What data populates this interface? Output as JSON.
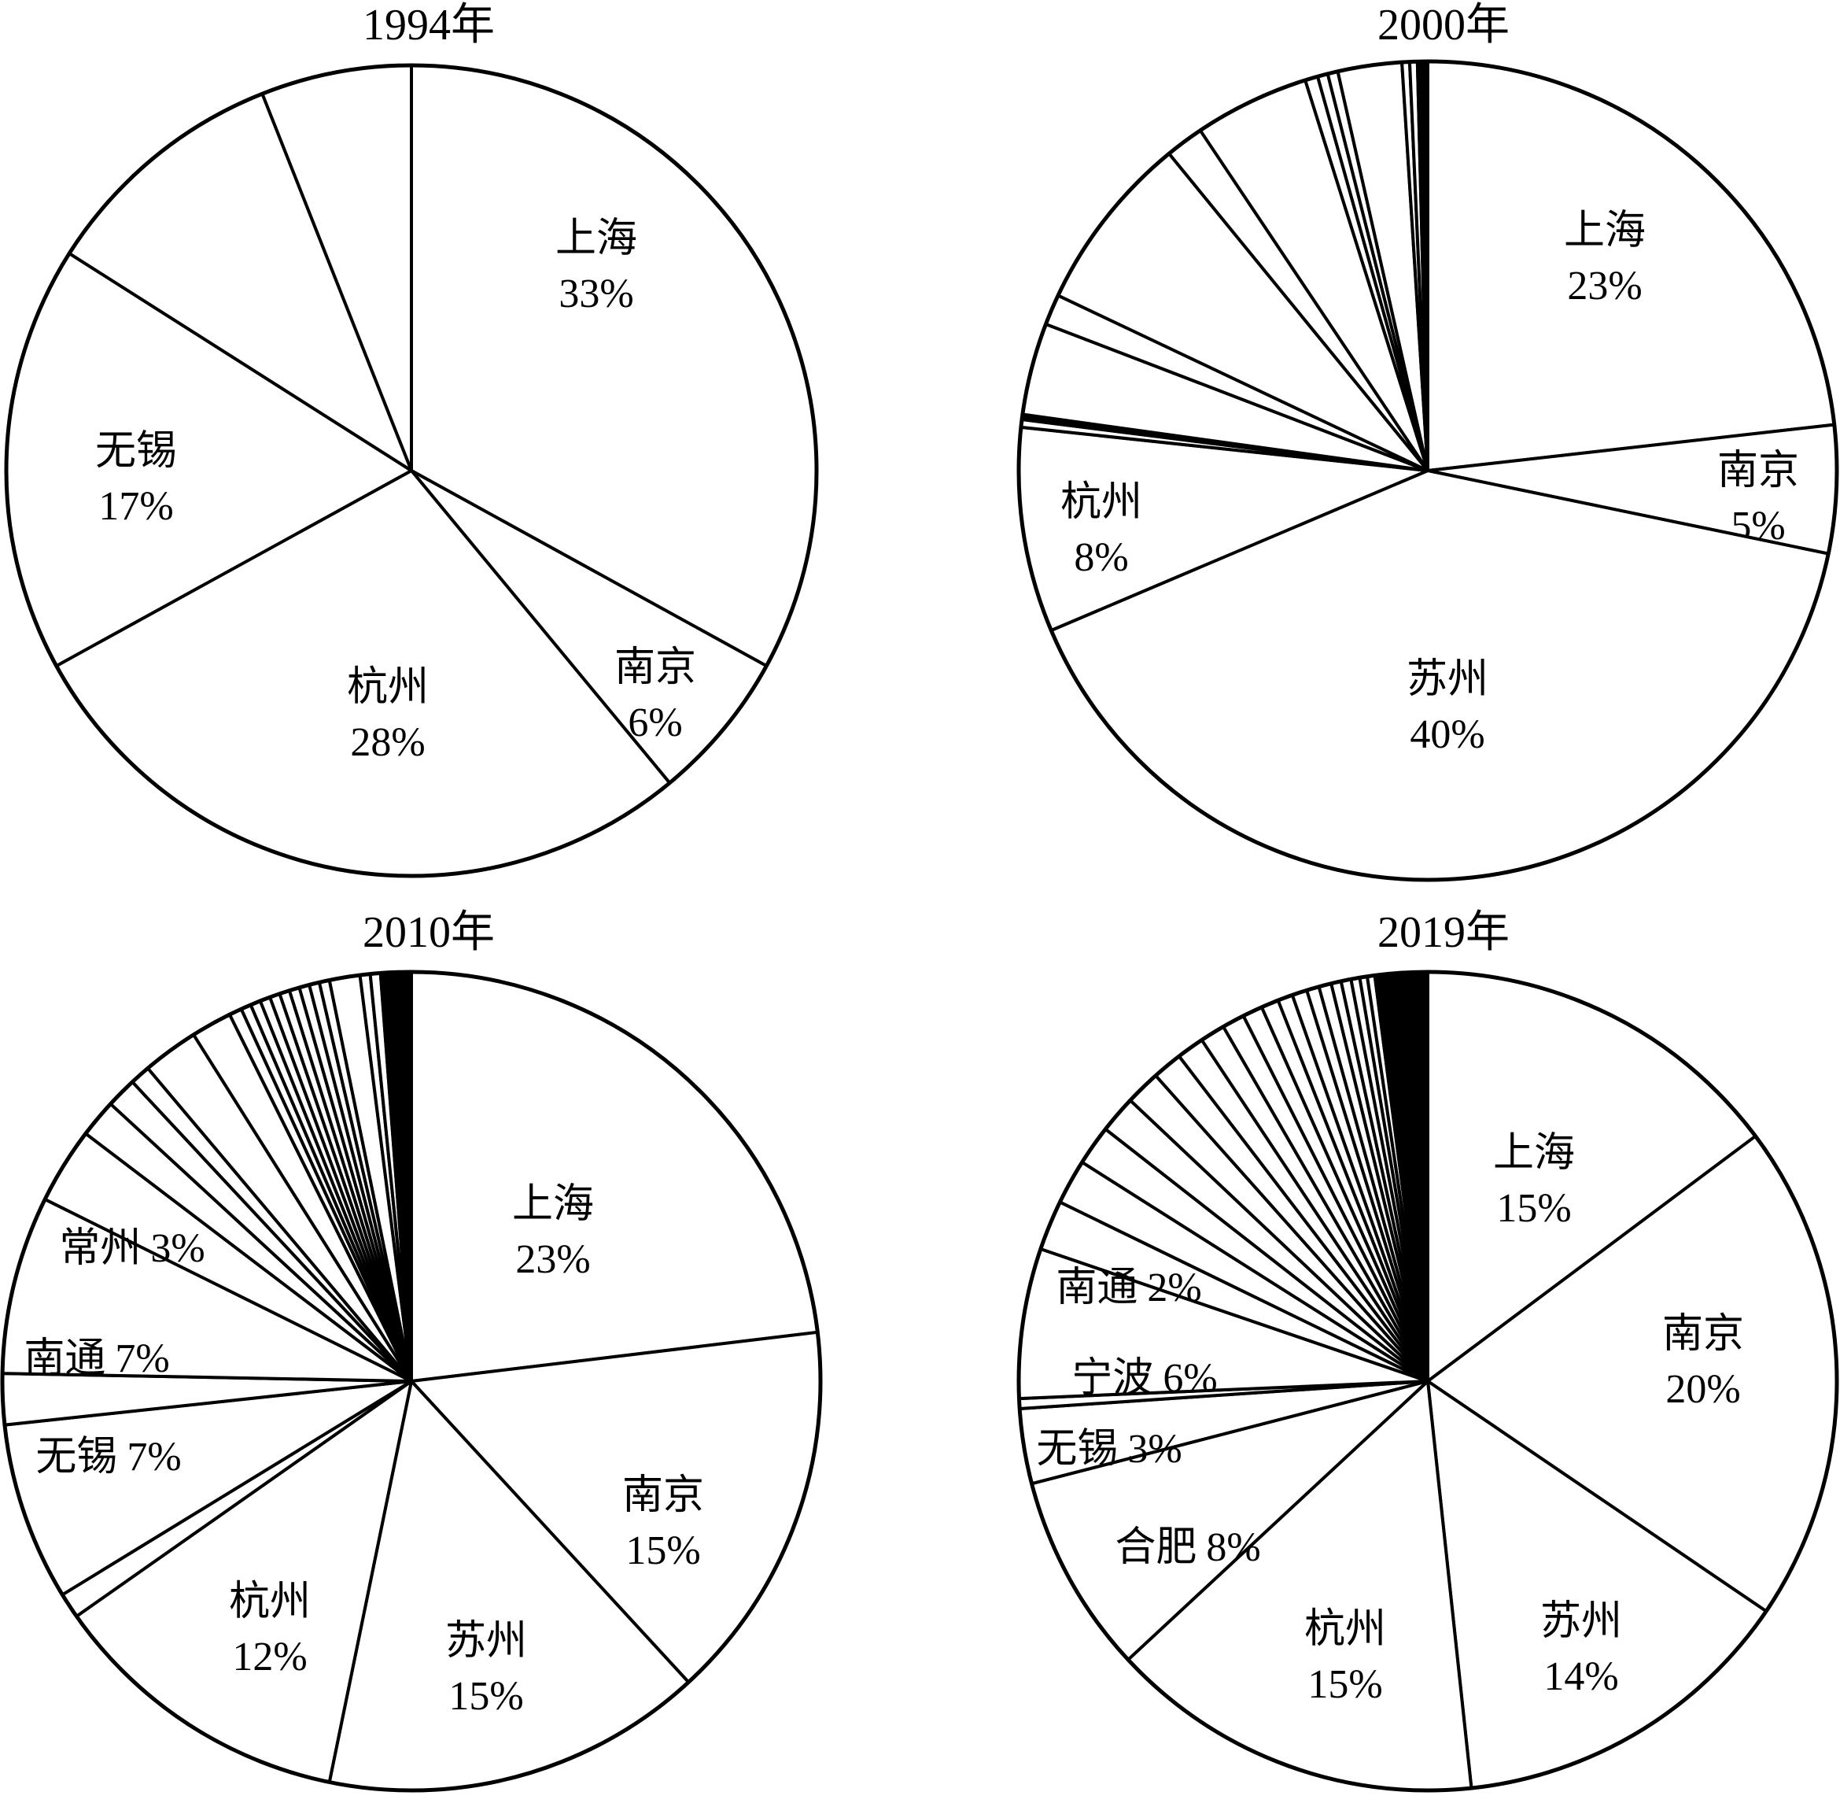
{
  "chart_data": [
    {
      "type": "pie",
      "title": "1994年",
      "slices": [
        {
          "label": "上海",
          "pct_text": "33%",
          "value": 33
        },
        {
          "label": "南京",
          "pct_text": "6%",
          "value": 6
        },
        {
          "label": "杭州",
          "pct_text": "28%",
          "value": 28
        },
        {
          "label": "无锡",
          "pct_text": "17%",
          "value": 17
        },
        {
          "label": "",
          "pct_text": "",
          "value": 10
        },
        {
          "label": "",
          "pct_text": "",
          "value": 6
        }
      ]
    },
    {
      "type": "pie",
      "title": "2000年",
      "slices": [
        {
          "label": "上海",
          "pct_text": "23%",
          "value": 23
        },
        {
          "label": "南京",
          "pct_text": "5%",
          "value": 5
        },
        {
          "label": "苏州",
          "pct_text": "40%",
          "value": 40
        },
        {
          "label": "杭州",
          "pct_text": "8%",
          "value": 8
        },
        {
          "label": "",
          "pct_text": "",
          "value": 0.3
        },
        {
          "label": "",
          "pct_text": "",
          "value": 0.2
        },
        {
          "label": "",
          "pct_text": "",
          "value": 3.6
        },
        {
          "label": "",
          "pct_text": "",
          "value": 1.2
        },
        {
          "label": "",
          "pct_text": "",
          "value": 7
        },
        {
          "label": "",
          "pct_text": "",
          "value": 1.5
        },
        {
          "label": "",
          "pct_text": "",
          "value": 4.5
        },
        {
          "label": "",
          "pct_text": "",
          "value": 0.5
        },
        {
          "label": "",
          "pct_text": "",
          "value": 0.4
        },
        {
          "label": "",
          "pct_text": "",
          "value": 0.4
        },
        {
          "label": "",
          "pct_text": "",
          "value": 2.5
        },
        {
          "label": "",
          "pct_text": "",
          "value": 0.3
        },
        {
          "label": "",
          "pct_text": "",
          "value": 0.3
        },
        {
          "label": "",
          "pct_text": "",
          "value": 0.2
        },
        {
          "label": "",
          "pct_text": "",
          "value": 0.2
        }
      ]
    },
    {
      "type": "pie",
      "title": "2010年",
      "slices": [
        {
          "label": "上海",
          "pct_text": "23%",
          "value": 23
        },
        {
          "label": "南京",
          "pct_text": "15%",
          "value": 15
        },
        {
          "label": "苏州",
          "pct_text": "15%",
          "value": 15
        },
        {
          "label": "杭州",
          "pct_text": "12%",
          "value": 12
        },
        {
          "label": "",
          "pct_text": "",
          "value": 1
        },
        {
          "label": "无锡",
          "pct_text": "7%",
          "value": 7
        },
        {
          "label": "",
          "pct_text": "",
          "value": 2
        },
        {
          "label": "南通",
          "pct_text": "7%",
          "value": 7
        },
        {
          "label": "常州",
          "pct_text": "3%",
          "value": 3
        },
        {
          "label": "",
          "pct_text": "",
          "value": 1.5
        },
        {
          "label": "",
          "pct_text": "",
          "value": 1.2
        },
        {
          "label": "",
          "pct_text": "",
          "value": 0.8
        },
        {
          "label": "",
          "pct_text": "",
          "value": 2.2
        },
        {
          "label": "",
          "pct_text": "",
          "value": 1.6
        },
        {
          "label": "",
          "pct_text": "",
          "value": 0.5
        },
        {
          "label": "",
          "pct_text": "",
          "value": 0.4
        },
        {
          "label": "",
          "pct_text": "",
          "value": 0.4
        },
        {
          "label": "",
          "pct_text": "",
          "value": 0.4
        },
        {
          "label": "",
          "pct_text": "",
          "value": 0.4
        },
        {
          "label": "",
          "pct_text": "",
          "value": 0.4
        },
        {
          "label": "",
          "pct_text": "",
          "value": 0.4
        },
        {
          "label": "",
          "pct_text": "",
          "value": 0.4
        },
        {
          "label": "",
          "pct_text": "",
          "value": 0.4
        },
        {
          "label": "",
          "pct_text": "",
          "value": 0.4
        },
        {
          "label": "",
          "pct_text": "",
          "value": 1.2
        },
        {
          "label": "",
          "pct_text": "",
          "value": 0.4
        },
        {
          "label": "",
          "pct_text": "",
          "value": 0.4
        },
        {
          "label": "",
          "pct_text": "",
          "value": 0.3
        },
        {
          "label": "",
          "pct_text": "",
          "value": 0.3
        },
        {
          "label": "",
          "pct_text": "",
          "value": 0.3
        },
        {
          "label": "",
          "pct_text": "",
          "value": 0.3
        }
      ]
    },
    {
      "type": "pie",
      "title": "2019年",
      "slices": [
        {
          "label": "上海",
          "pct_text": "15%",
          "value": 15
        },
        {
          "label": "南京",
          "pct_text": "20%",
          "value": 20
        },
        {
          "label": "苏州",
          "pct_text": "14%",
          "value": 14
        },
        {
          "label": "杭州",
          "pct_text": "15%",
          "value": 15
        },
        {
          "label": "合肥",
          "pct_text": "8%",
          "value": 8
        },
        {
          "label": "无锡",
          "pct_text": "3%",
          "value": 3
        },
        {
          "label": "",
          "pct_text": "",
          "value": 0.4
        },
        {
          "label": "宁波",
          "pct_text": "6%",
          "value": 6
        },
        {
          "label": "南通",
          "pct_text": "2%",
          "value": 2
        },
        {
          "label": "",
          "pct_text": "",
          "value": 1.8
        },
        {
          "label": "",
          "pct_text": "",
          "value": 1.6
        },
        {
          "label": "",
          "pct_text": "",
          "value": 1.5
        },
        {
          "label": "",
          "pct_text": "",
          "value": 1.4
        },
        {
          "label": "",
          "pct_text": "",
          "value": 1.2
        },
        {
          "label": "",
          "pct_text": "",
          "value": 1.1
        },
        {
          "label": "",
          "pct_text": "",
          "value": 1.0
        },
        {
          "label": "",
          "pct_text": "",
          "value": 0.9
        },
        {
          "label": "",
          "pct_text": "",
          "value": 0.8
        },
        {
          "label": "",
          "pct_text": "",
          "value": 0.7
        },
        {
          "label": "",
          "pct_text": "",
          "value": 0.6
        },
        {
          "label": "",
          "pct_text": "",
          "value": 0.6
        },
        {
          "label": "",
          "pct_text": "",
          "value": 0.5
        },
        {
          "label": "",
          "pct_text": "",
          "value": 0.5
        },
        {
          "label": "",
          "pct_text": "",
          "value": 0.4
        },
        {
          "label": "",
          "pct_text": "",
          "value": 0.4
        },
        {
          "label": "",
          "pct_text": "",
          "value": 0.35
        },
        {
          "label": "",
          "pct_text": "",
          "value": 0.3
        },
        {
          "label": "",
          "pct_text": "",
          "value": 0.3
        },
        {
          "label": "",
          "pct_text": "",
          "value": 0.25
        },
        {
          "label": "",
          "pct_text": "",
          "value": 0.25
        },
        {
          "label": "",
          "pct_text": "",
          "value": 0.2
        },
        {
          "label": "",
          "pct_text": "",
          "value": 0.2
        },
        {
          "label": "",
          "pct_text": "",
          "value": 0.2
        },
        {
          "label": "",
          "pct_text": "",
          "value": 0.15
        },
        {
          "label": "",
          "pct_text": "",
          "value": 0.15
        },
        {
          "label": "",
          "pct_text": "",
          "value": 0.15
        },
        {
          "label": "",
          "pct_text": "",
          "value": 0.15
        },
        {
          "label": "",
          "pct_text": "",
          "value": 0.1
        },
        {
          "label": "",
          "pct_text": "",
          "value": 0.1
        },
        {
          "label": "",
          "pct_text": "",
          "value": 0.1
        },
        {
          "label": "",
          "pct_text": "",
          "value": 0.1
        }
      ]
    }
  ]
}
